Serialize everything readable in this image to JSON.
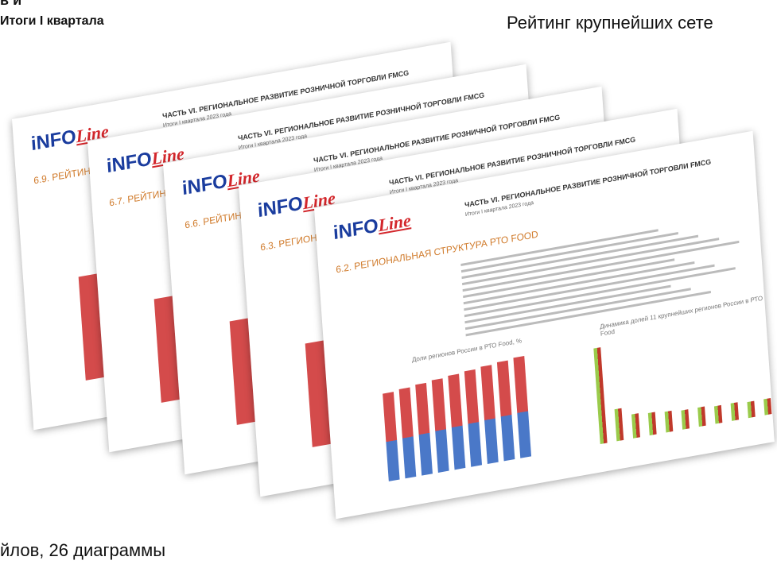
{
  "header": {
    "left_fragment": "в и",
    "left_title": "Итоги I квартала",
    "right_title": "Рейтинг крупнейших сете",
    "bottom_fragment": "йлов, 26 диаграммы"
  },
  "pages": [
    {
      "part_title": "ЧАСТЬ VI. РЕГИОНАЛЬНОЕ РАЗВИТИЕ РОЗНИЧНОЙ ТОРГОВЛИ FMCG",
      "subtitle": "Итоги I квартала 2023 года",
      "section": "6.9. РЕЙТИН"
    },
    {
      "part_title": "ЧАСТЬ VI. РЕГИОНАЛЬНОЕ РАЗВИТИЕ РОЗНИЧНОЙ ТОРГОВЛИ FMCG",
      "subtitle": "Итоги I квартала 2023 года",
      "section": "6.7. РЕЙТИН"
    },
    {
      "part_title": "ЧАСТЬ VI. РЕГИОНАЛЬНОЕ РАЗВИТИЕ РОЗНИЧНОЙ ТОРГОВЛИ FMCG",
      "subtitle": "Итоги I квартала 2023 года",
      "section": "6.6. РЕЙТИН"
    },
    {
      "part_title": "ЧАСТЬ VI. РЕГИОНАЛЬНОЕ РАЗВИТИЕ РОЗНИЧНОЙ ТОРГОВЛИ FMCG",
      "subtitle": "Итоги I квартала 2023 года",
      "section": "6.3. РЕГИОНАЛ"
    },
    {
      "part_title": "ЧАСТЬ VI. РЕГИОНАЛЬНОЕ РАЗВИТИЕ РОЗНИЧНОЙ ТОРГОВЛИ FMCG",
      "subtitle": "Итоги I квартала 2023 года",
      "section": "6.2. РЕГИОНАЛЬНАЯ СТРУКТУРА РТО FOOD"
    }
  ],
  "logo": {
    "main": "iNFO",
    "script": "Line"
  },
  "front_charts": {
    "left": "Доли регионов России в РТО Food, %",
    "right": "Динамика долей 11 крупнейших регионов России в РТО Food"
  }
}
